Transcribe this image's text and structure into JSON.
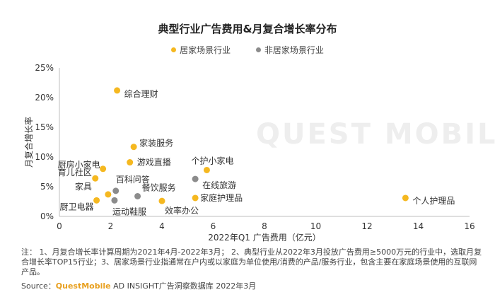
{
  "title": "典型行业广告费用&月复合增长率分布",
  "legend": [
    {
      "label": "居家场景行业",
      "color": "#F5B820"
    },
    {
      "label": "非居家场景行业",
      "color": "#8C8C8C"
    }
  ],
  "watermark": "QUEST MOBILE",
  "note": "注： 1、月复合增长率计算周期为2021年4月-2022年3月； 2、典型行业从2022年3月投放广告费用≥5000万元的行业中，选取月复合增长率TOP15行业；3、居家场景行业指通常在户内或以家庭为单位使用/消费的产品/服务行业，包含主要在家庭场景使用的互联网产品。",
  "source": {
    "prefix": "Source：",
    "brand": "QuestMobile",
    "suffix": " AD INSIGHT广告洞察数据库 2022年3月"
  },
  "chart_data": {
    "type": "scatter",
    "xlabel": "2022年Q1 广告费用（亿元）",
    "ylabel": "月复合增长率",
    "xlim": [
      0,
      16
    ],
    "ylim": [
      0,
      0.25
    ],
    "xticks": [
      "0",
      "2",
      "4",
      "6",
      "8",
      "10",
      "12",
      "14",
      "16"
    ],
    "yticks": [
      "0%",
      "5%",
      "10%",
      "15%",
      "20%",
      "25%"
    ],
    "grid": false,
    "legend_position": "top-center",
    "series": [
      {
        "name": "居家场景行业",
        "color": "#F5B820",
        "points": [
          {
            "label": "综合理财",
            "x": 2.25,
            "y": 0.212
          },
          {
            "label": "家装服务",
            "x": 2.9,
            "y": 0.117
          },
          {
            "label": "厨房小家电",
            "x": 1.7,
            "y": 0.08
          },
          {
            "label": "游戏直播",
            "x": 2.75,
            "y": 0.091
          },
          {
            "label": "个护小家电",
            "x": 5.75,
            "y": 0.078
          },
          {
            "label": "育儿社区",
            "x": 1.4,
            "y": 0.064
          },
          {
            "label": "家具",
            "x": 1.9,
            "y": 0.037
          },
          {
            "label": "厨卫电器",
            "x": 1.45,
            "y": 0.027
          },
          {
            "label": "效率办公",
            "x": 4.0,
            "y": 0.026
          },
          {
            "label": "家庭护理品",
            "x": 5.3,
            "y": 0.031
          },
          {
            "label": "个人护理品",
            "x": 13.5,
            "y": 0.031
          }
        ]
      },
      {
        "name": "非居家场景行业",
        "color": "#8C8C8C",
        "points": [
          {
            "label": "在线旅游",
            "x": 5.3,
            "y": 0.063
          },
          {
            "label": "百科问答",
            "x": 2.2,
            "y": 0.043
          },
          {
            "label": "餐饮服务",
            "x": 3.05,
            "y": 0.034
          },
          {
            "label": "运动鞋服",
            "x": 2.15,
            "y": 0.027
          }
        ]
      }
    ]
  }
}
